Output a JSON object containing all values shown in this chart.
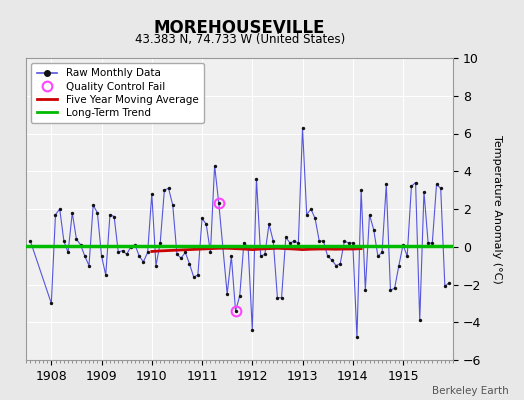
{
  "title": "MOREHOUSEVILLE",
  "subtitle": "43.383 N, 74.733 W (United States)",
  "ylabel": "Temperature Anomaly (°C)",
  "credit": "Berkeley Earth",
  "xlim": [
    1907.5,
    1916.0
  ],
  "ylim": [
    -6,
    10
  ],
  "yticks": [
    -6,
    -4,
    -2,
    0,
    2,
    4,
    6,
    8,
    10
  ],
  "xtick_years": [
    1908,
    1909,
    1910,
    1911,
    1912,
    1913,
    1914,
    1915
  ],
  "background_color": "#e8e8e8",
  "plot_bg_color": "#f0f0f0",
  "raw_color": "#5555dd",
  "marker_color": "#111111",
  "moving_avg_color": "#cc0000",
  "trend_color": "#00bb00",
  "qc_fail_color": "#ff44ff",
  "monthly_data": [
    [
      1907.583,
      0.3
    ],
    [
      1908.0,
      -3.0
    ],
    [
      1908.083,
      1.7
    ],
    [
      1908.167,
      2.0
    ],
    [
      1908.25,
      0.3
    ],
    [
      1908.333,
      -0.3
    ],
    [
      1908.417,
      1.8
    ],
    [
      1908.5,
      0.4
    ],
    [
      1908.583,
      0.1
    ],
    [
      1908.667,
      -0.5
    ],
    [
      1908.75,
      -1.0
    ],
    [
      1908.833,
      2.2
    ],
    [
      1908.917,
      1.8
    ],
    [
      1909.0,
      -0.5
    ],
    [
      1909.083,
      -1.5
    ],
    [
      1909.167,
      1.7
    ],
    [
      1909.25,
      1.6
    ],
    [
      1909.333,
      -0.3
    ],
    [
      1909.417,
      -0.2
    ],
    [
      1909.5,
      -0.4
    ],
    [
      1909.583,
      0.0
    ],
    [
      1909.667,
      0.1
    ],
    [
      1909.75,
      -0.5
    ],
    [
      1909.833,
      -0.8
    ],
    [
      1909.917,
      -0.3
    ],
    [
      1910.0,
      2.8
    ],
    [
      1910.083,
      -1.0
    ],
    [
      1910.167,
      0.2
    ],
    [
      1910.25,
      3.0
    ],
    [
      1910.333,
      3.1
    ],
    [
      1910.417,
      2.2
    ],
    [
      1910.5,
      -0.4
    ],
    [
      1910.583,
      -0.6
    ],
    [
      1910.667,
      -0.3
    ],
    [
      1910.75,
      -0.9
    ],
    [
      1910.833,
      -1.6
    ],
    [
      1910.917,
      -1.5
    ],
    [
      1911.0,
      1.5
    ],
    [
      1911.083,
      1.2
    ],
    [
      1911.167,
      -0.3
    ],
    [
      1911.25,
      4.3
    ],
    [
      1911.333,
      2.3
    ],
    [
      1911.5,
      -2.5
    ],
    [
      1911.583,
      -0.5
    ],
    [
      1911.667,
      -3.4
    ],
    [
      1911.75,
      -2.6
    ],
    [
      1911.833,
      0.2
    ],
    [
      1911.917,
      0.0
    ],
    [
      1912.0,
      -4.4
    ],
    [
      1912.083,
      3.6
    ],
    [
      1912.167,
      -0.5
    ],
    [
      1912.25,
      -0.4
    ],
    [
      1912.333,
      1.2
    ],
    [
      1912.417,
      0.3
    ],
    [
      1912.5,
      -2.7
    ],
    [
      1912.583,
      -2.7
    ],
    [
      1912.667,
      0.5
    ],
    [
      1912.75,
      0.2
    ],
    [
      1912.833,
      0.3
    ],
    [
      1912.917,
      0.2
    ],
    [
      1913.0,
      6.3
    ],
    [
      1913.083,
      1.7
    ],
    [
      1913.167,
      2.0
    ],
    [
      1913.25,
      1.5
    ],
    [
      1913.333,
      0.3
    ],
    [
      1913.417,
      0.3
    ],
    [
      1913.5,
      -0.5
    ],
    [
      1913.583,
      -0.7
    ],
    [
      1913.667,
      -1.0
    ],
    [
      1913.75,
      -0.9
    ],
    [
      1913.833,
      0.3
    ],
    [
      1913.917,
      0.2
    ],
    [
      1914.0,
      0.2
    ],
    [
      1914.083,
      -4.8
    ],
    [
      1914.167,
      3.0
    ],
    [
      1914.25,
      -2.3
    ],
    [
      1914.333,
      1.7
    ],
    [
      1914.417,
      0.9
    ],
    [
      1914.5,
      -0.5
    ],
    [
      1914.583,
      -0.3
    ],
    [
      1914.667,
      3.3
    ],
    [
      1914.75,
      -2.3
    ],
    [
      1914.833,
      -2.2
    ],
    [
      1914.917,
      -1.0
    ],
    [
      1915.0,
      0.1
    ],
    [
      1915.083,
      -0.5
    ],
    [
      1915.167,
      3.2
    ],
    [
      1915.25,
      3.4
    ],
    [
      1915.333,
      -3.9
    ],
    [
      1915.417,
      2.9
    ],
    [
      1915.5,
      0.2
    ],
    [
      1915.583,
      0.2
    ],
    [
      1915.667,
      3.3
    ],
    [
      1915.75,
      3.1
    ],
    [
      1915.833,
      -2.1
    ],
    [
      1915.917,
      -1.9
    ]
  ],
  "moving_avg_data": [
    [
      1910.0,
      -0.25
    ],
    [
      1910.167,
      -0.22
    ],
    [
      1910.333,
      -0.2
    ],
    [
      1910.5,
      -0.18
    ],
    [
      1910.667,
      -0.16
    ],
    [
      1910.833,
      -0.14
    ],
    [
      1911.0,
      -0.12
    ],
    [
      1911.167,
      -0.1
    ],
    [
      1911.333,
      -0.08
    ],
    [
      1911.5,
      -0.08
    ],
    [
      1911.667,
      -0.1
    ],
    [
      1911.833,
      -0.12
    ],
    [
      1912.0,
      -0.15
    ],
    [
      1912.167,
      -0.12
    ],
    [
      1912.333,
      -0.1
    ],
    [
      1912.5,
      -0.08
    ],
    [
      1912.667,
      -0.1
    ],
    [
      1912.833,
      -0.12
    ],
    [
      1913.0,
      -0.15
    ],
    [
      1913.167,
      -0.13
    ],
    [
      1913.333,
      -0.12
    ],
    [
      1913.5,
      -0.12
    ],
    [
      1913.667,
      -0.13
    ],
    [
      1913.833,
      -0.12
    ],
    [
      1914.0,
      -0.12
    ],
    [
      1914.167,
      -0.1
    ]
  ],
  "qc_fail_points": [
    [
      1911.333,
      2.3
    ],
    [
      1911.667,
      -3.4
    ]
  ],
  "trend_y": 0.05
}
